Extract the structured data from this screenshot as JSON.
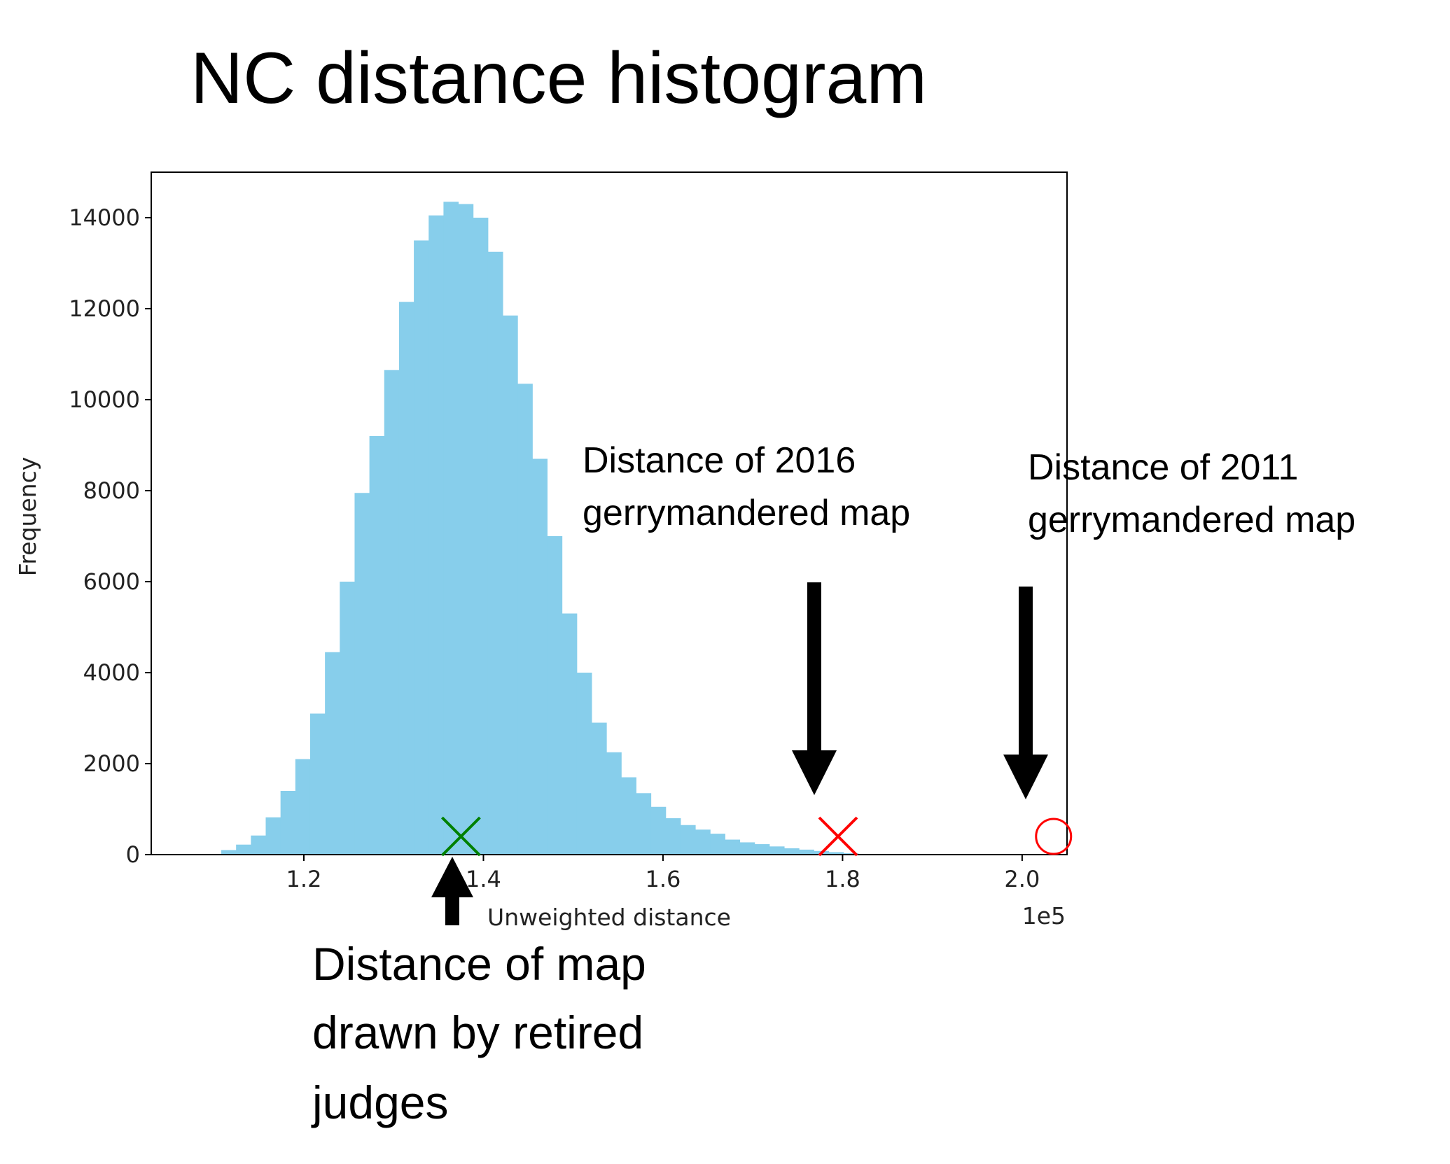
{
  "slide_title": "NC distance histogram",
  "chart_data": {
    "type": "bar",
    "title": "",
    "xlabel": "Unweighted distance",
    "ylabel": "Frequency",
    "x_offset_label": "1e5",
    "xlim": [
      1.03,
      2.05
    ],
    "ylim": [
      0,
      15000
    ],
    "x_ticks": [
      1.2,
      1.4,
      1.6,
      1.8,
      2.0
    ],
    "x_tick_labels": [
      "1.2",
      "1.4",
      "1.6",
      "1.8",
      "2.0"
    ],
    "y_ticks": [
      0,
      2000,
      4000,
      6000,
      8000,
      10000,
      12000,
      14000
    ],
    "y_tick_labels": [
      "0",
      "2000",
      "4000",
      "6000",
      "8000",
      "10000",
      "12000",
      "14000"
    ],
    "bar_color": "#87ceeb",
    "bin_width": 0.0165,
    "bins_start": [
      1.108,
      1.1245,
      1.141,
      1.1575,
      1.174,
      1.1905,
      1.207,
      1.2235,
      1.24,
      1.2565,
      1.273,
      1.2895,
      1.306,
      1.3225,
      1.339,
      1.3555,
      1.372,
      1.3885,
      1.405,
      1.4215,
      1.438,
      1.4545,
      1.471,
      1.4875,
      1.504,
      1.5205,
      1.537,
      1.5535,
      1.57,
      1.5865,
      1.603,
      1.6195,
      1.636,
      1.6525,
      1.669,
      1.6855,
      1.702,
      1.7185,
      1.735,
      1.7515,
      1.768,
      1.7845,
      1.801
    ],
    "values": [
      100,
      220,
      420,
      820,
      1400,
      2100,
      3100,
      4450,
      6000,
      7950,
      9200,
      10650,
      12150,
      13500,
      14050,
      14350,
      14300,
      14000,
      13250,
      11850,
      10350,
      8700,
      7000,
      5300,
      4000,
      2900,
      2250,
      1700,
      1350,
      1050,
      800,
      650,
      550,
      460,
      330,
      270,
      230,
      180,
      140,
      110,
      80,
      55,
      30
    ],
    "markers": [
      {
        "label": "Distance of map drawn by retired judges",
        "x": 1.375,
        "y": 400,
        "shape": "x",
        "color": "#008000"
      },
      {
        "label": "Distance of 2016 gerrymandered map",
        "x": 1.795,
        "y": 400,
        "shape": "x",
        "color": "#ff0000"
      },
      {
        "label": "Distance of 2011 gerrymandered map",
        "x": 2.035,
        "y": 400,
        "shape": "circle",
        "color": "#ff0000"
      }
    ]
  },
  "annotations": {
    "a2016_line1": "Distance of 2016",
    "a2016_line2": "gerrymandered map",
    "a2011_line1": "Distance of 2011",
    "a2011_line2": "gerrymandered map",
    "judges_line1": "Distance of map",
    "judges_line2": "drawn by retired",
    "judges_line3": "judges"
  }
}
